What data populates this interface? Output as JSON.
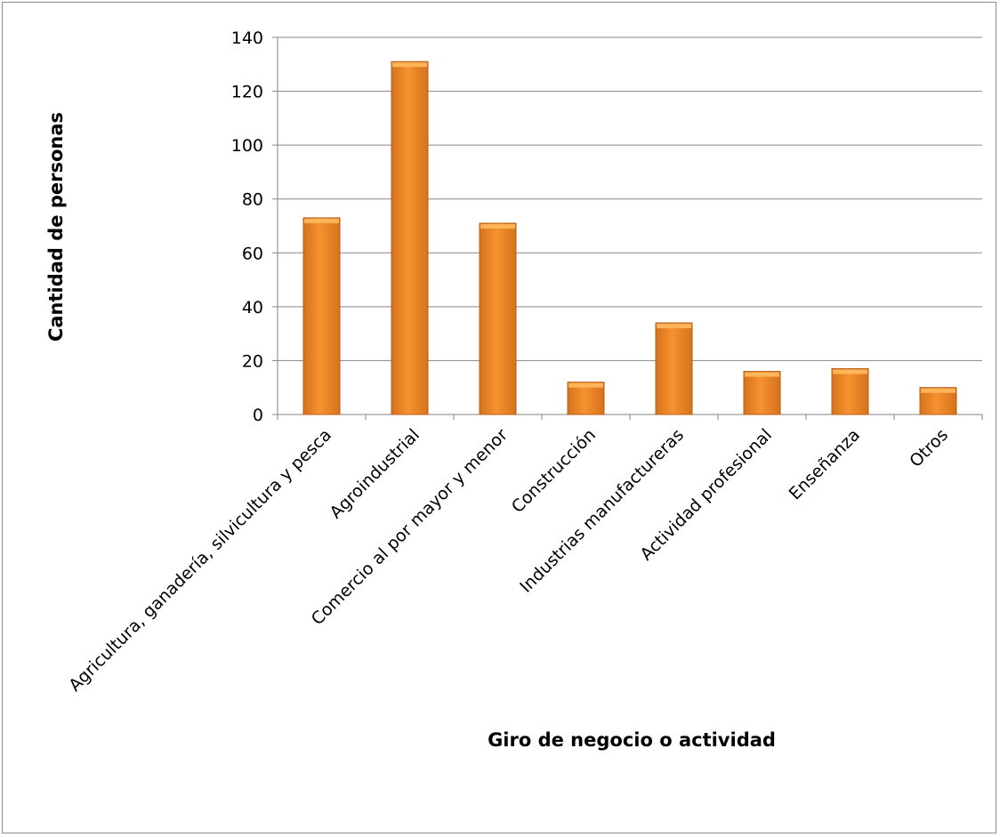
{
  "chart_data": {
    "type": "bar",
    "title": "",
    "xlabel": "Giro de negocio o actividad",
    "ylabel": "Cantidad de personas",
    "categories": [
      "Agricultura, ganadería, silvicultura y pesca",
      "Agroindustrial",
      "Comercio al por mayor y menor",
      "Construcción",
      "Industrias manufactureras",
      "Actividad profesional",
      "Enseñanza",
      "Otros"
    ],
    "values": [
      73,
      131,
      71,
      12,
      34,
      16,
      17,
      10
    ],
    "ylim": [
      0,
      140
    ],
    "yticks": [
      0,
      20,
      40,
      60,
      80,
      100,
      120,
      140
    ],
    "grid": true,
    "legend": "none",
    "colors": {
      "bar_light": "#FFB45A",
      "bar_main": "#F7922F",
      "bar_dark": "#D5721C",
      "bar_edge": "#B85F14",
      "gridline": "#868686",
      "frame": "#8C8C8C"
    }
  }
}
